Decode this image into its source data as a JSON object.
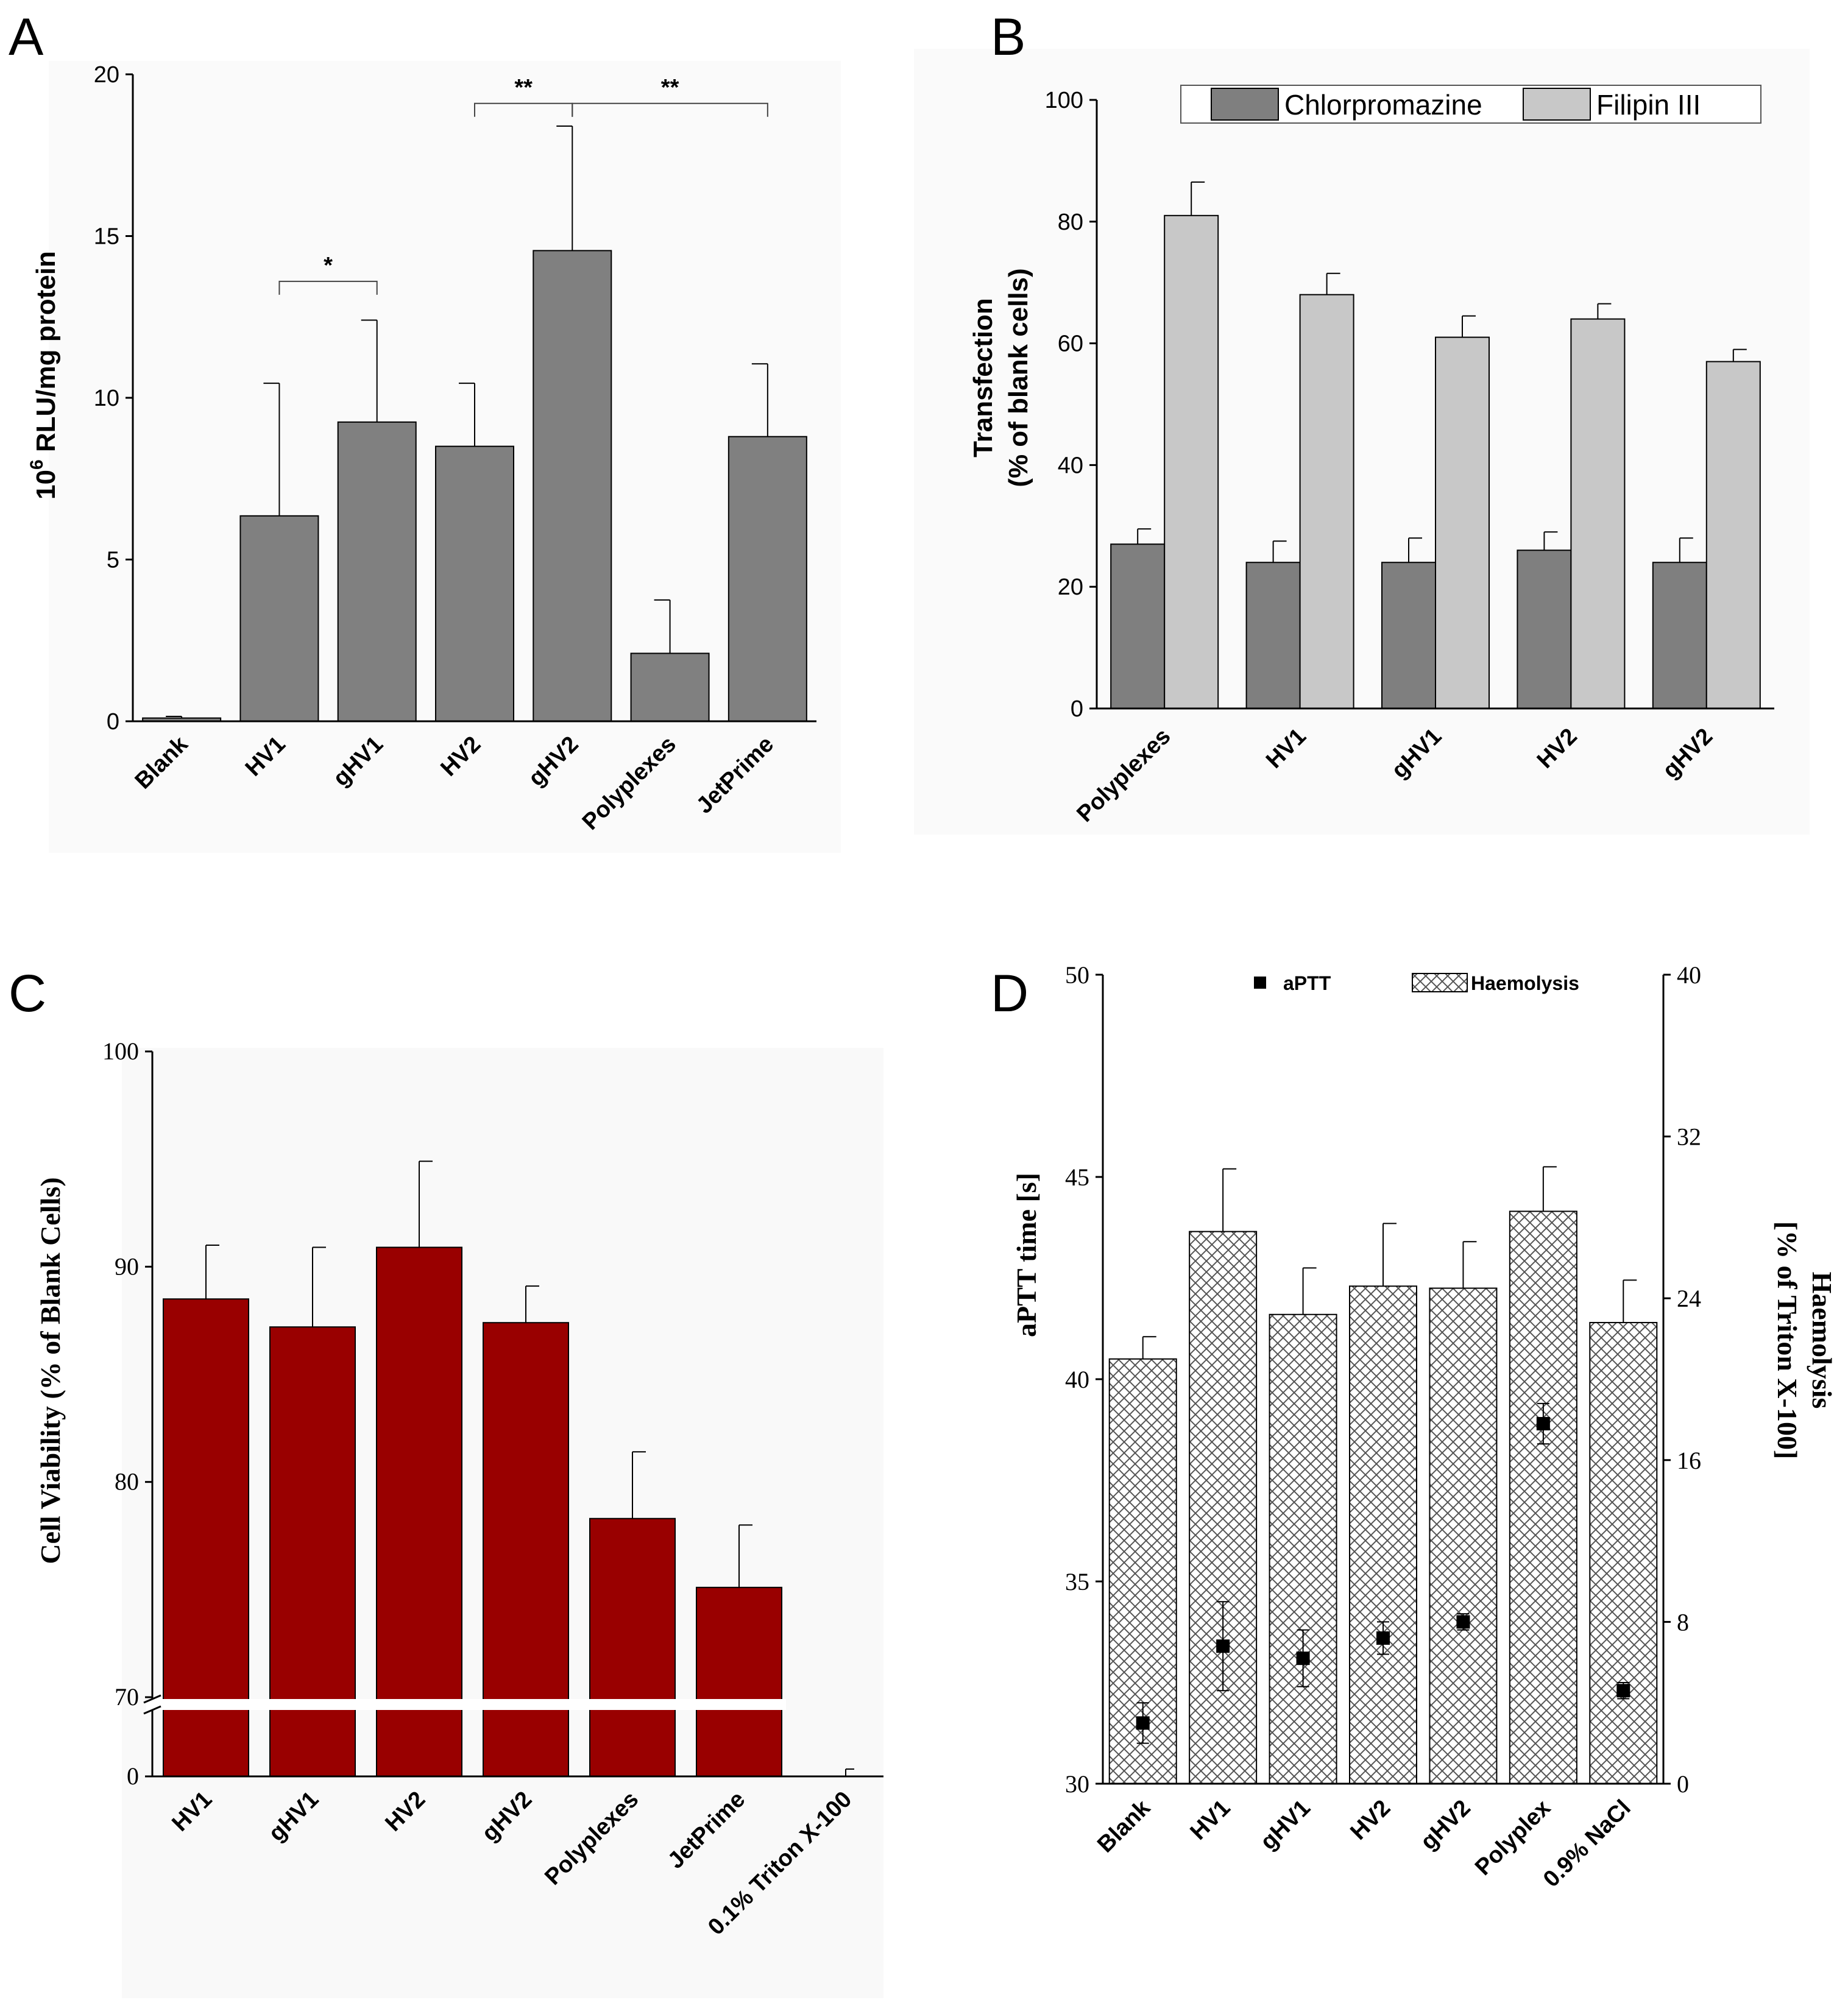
{
  "chart_data": [
    {
      "panel": "A",
      "type": "bar",
      "ylabel_sup": "6",
      "ylabel_pre": "10",
      "ylabel_main": " RLU/mg protein",
      "ylim": [
        0,
        20
      ],
      "yticks": [
        "0",
        "5",
        "10",
        "15",
        "20"
      ],
      "categories": [
        "Blank",
        "HV1",
        "gHV1",
        "HV2",
        "gHV2",
        "Polyplexes",
        "JetPrime"
      ],
      "values": [
        0.1,
        6.35,
        9.25,
        8.5,
        14.55,
        2.1,
        8.8
      ],
      "errors": [
        0.05,
        4.1,
        3.15,
        1.95,
        3.85,
        1.65,
        2.25
      ],
      "bar_color": "#808080",
      "significance": [
        {
          "from": 1,
          "to": 2,
          "label": "*",
          "y": 13.6
        },
        {
          "from": 3,
          "to": 4,
          "label": "**",
          "y": 19.1
        },
        {
          "from": 4,
          "to": 6,
          "label": "**",
          "y": 19.1
        }
      ]
    },
    {
      "panel": "B",
      "type": "bar",
      "ylabel_line1": "Transfection",
      "ylabel_line2": "(% of blank cells)",
      "ylim": [
        0,
        100
      ],
      "yticks": [
        "0",
        "20",
        "40",
        "60",
        "80",
        "100"
      ],
      "categories": [
        "Polyplexes",
        "HV1",
        "gHV1",
        "HV2",
        "gHV2"
      ],
      "series": [
        {
          "name": "Chlorpromazine",
          "color": "#7f7f7f",
          "values": [
            27,
            24,
            24,
            26,
            24
          ],
          "errors": [
            2.5,
            3.5,
            4,
            3,
            4
          ]
        },
        {
          "name": "Filipin III",
          "color": "#c8c8c8",
          "values": [
            81,
            68,
            61,
            64,
            57
          ],
          "errors": [
            5.5,
            3.5,
            3.5,
            2.5,
            2
          ]
        }
      ],
      "legend": "top"
    },
    {
      "panel": "C",
      "type": "bar",
      "ylabel": "Cell Viability (% of Blank Cells)",
      "ylim_upper": [
        70,
        100
      ],
      "ylim_lower": [
        0,
        2
      ],
      "axis_break": true,
      "yticks": [
        "0",
        "70",
        "80",
        "90",
        "100"
      ],
      "categories": [
        "HV1",
        "gHV1",
        "HV2",
        "gHV2",
        "Polyplexes",
        "JetPrime",
        "0.1% Triton X-100"
      ],
      "values": [
        88.5,
        87.2,
        90.9,
        87.4,
        78.3,
        75.1,
        0
      ],
      "errors": [
        2.5,
        3.7,
        4.0,
        1.7,
        3.1,
        2.9,
        0.3
      ],
      "bar_color": "#990000"
    },
    {
      "panel": "D",
      "type": "bar",
      "ylabel_left": "aPTT time [s]",
      "ylabel_right_line1": "Haemolysis",
      "ylabel_right_line2": "[% of Triton X-100]",
      "ylim_left": [
        30,
        50
      ],
      "ylim_right": [
        0,
        40
      ],
      "yticks_left": [
        "30",
        "35",
        "40",
        "45",
        "50"
      ],
      "yticks_right": [
        "0",
        "8",
        "16",
        "24",
        "32",
        "40"
      ],
      "categories": [
        "Blank",
        "HV1",
        "gHV1",
        "HV2",
        "gHV2",
        "Polyplex",
        "0.9% NaCl"
      ],
      "series": [
        {
          "name": "Haemolysis",
          "axis": "right",
          "kind": "bar",
          "values": [
            21,
            27.3,
            23.2,
            24.6,
            24.5,
            28.3,
            22.8
          ],
          "errors": [
            1.1,
            3.1,
            2.3,
            3.1,
            2.3,
            2.2,
            2.1
          ]
        },
        {
          "name": "aPTT",
          "axis": "left",
          "kind": "scatter",
          "values": [
            31.5,
            33.4,
            33.1,
            33.6,
            34.0,
            38.9,
            32.3
          ],
          "errors": [
            0.5,
            1.1,
            0.7,
            0.4,
            0.2,
            0.5,
            0.2
          ]
        }
      ],
      "legend": "top"
    }
  ],
  "panel_labels": [
    "A",
    "B",
    "C",
    "D"
  ]
}
